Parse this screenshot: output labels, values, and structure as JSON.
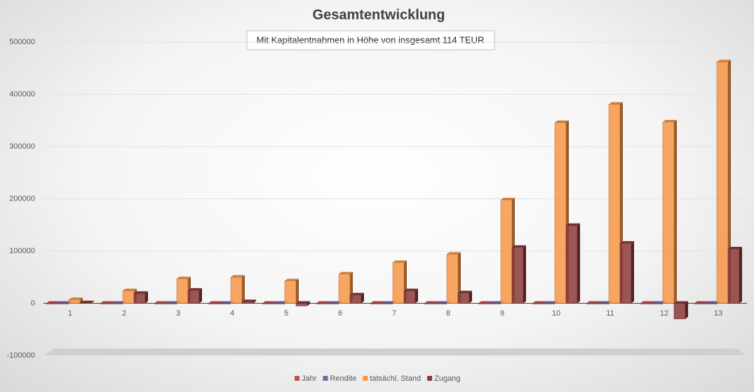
{
  "chart_data": {
    "type": "bar3d",
    "title": "Gesamtentwicklung",
    "subtitle": "Mit Kapitalentnahmen in Höhe von insgesamt 114 TEUR",
    "categories": [
      "1",
      "2",
      "3",
      "4",
      "5",
      "6",
      "7",
      "8",
      "9",
      "10",
      "11",
      "12",
      "13"
    ],
    "series": [
      {
        "name": "Jahr",
        "color": "#c0504d",
        "values": [
          1,
          2,
          3,
          4,
          5,
          6,
          7,
          8,
          9,
          10,
          11,
          12,
          13
        ]
      },
      {
        "name": "Rendite",
        "color": "#8064a2",
        "values": [
          5,
          5,
          5,
          5,
          5,
          5,
          5,
          5,
          5,
          5,
          5,
          5,
          5
        ]
      },
      {
        "name": "tatsächl. Stand",
        "color": "#f79646",
        "values": [
          7000,
          24000,
          47000,
          50000,
          43000,
          56000,
          78000,
          94000,
          198000,
          346000,
          381000,
          347000,
          462000
        ]
      },
      {
        "name": "Zugang",
        "color": "#8b3a3a",
        "values": [
          1000,
          19000,
          25000,
          3000,
          -5000,
          16000,
          24000,
          20000,
          107000,
          149000,
          115000,
          -30000,
          104000
        ]
      }
    ],
    "ylim": [
      -100000,
      500000
    ],
    "yticks": [
      -100000,
      0,
      100000,
      200000,
      300000,
      400000,
      500000
    ],
    "grid": true,
    "legend": "bottom"
  }
}
